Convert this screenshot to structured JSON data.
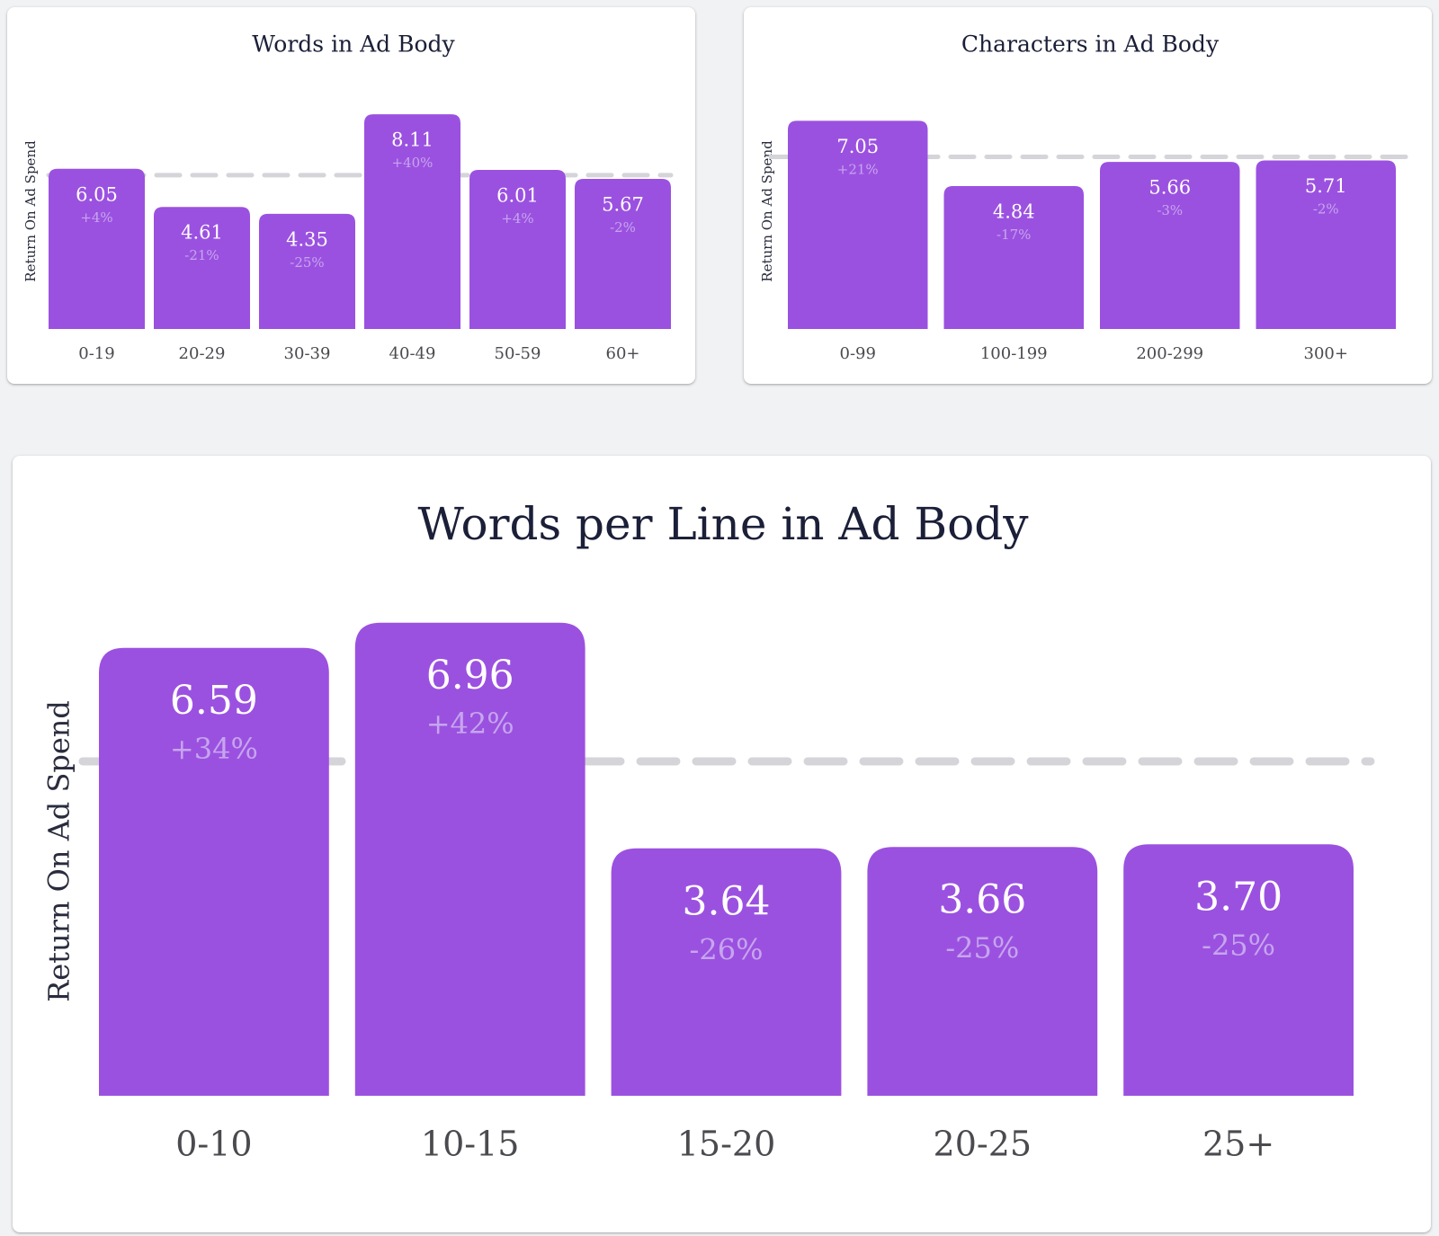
{
  "colors": {
    "bar": "#9b51e0",
    "reference_line": "#d4d4d9",
    "title": "#1b1f38",
    "value_label": "#ffffff",
    "percent_label": "#c6a6ee",
    "tick_label": "#4a4a4f",
    "card_background": "#ffffff",
    "page_background": "#f1f2f4"
  },
  "chart_data": [
    {
      "type": "bar",
      "title": "Words in Ad Body",
      "ylabel": "Return On Ad Spend",
      "xlabel": "",
      "categories": [
        "0-19",
        "20-29",
        "30-39",
        "40-49",
        "50-59",
        "60+"
      ],
      "values": [
        6.05,
        4.61,
        4.35,
        8.11,
        6.01,
        5.67
      ],
      "value_labels": [
        "6.05",
        "4.61",
        "4.35",
        "8.11",
        "6.01",
        "5.67"
      ],
      "percent_labels": [
        "+4%",
        "-21%",
        "-25%",
        "+40%",
        "+4%",
        "-2%"
      ],
      "reference_line": 5.81,
      "reference_style": "dashed",
      "grid": false,
      "legend": "none"
    },
    {
      "type": "bar",
      "title": "Characters in Ad Body",
      "ylabel": "Return On Ad Spend",
      "xlabel": "",
      "categories": [
        "0-99",
        "100-199",
        "200-299",
        "300+"
      ],
      "values": [
        7.05,
        4.84,
        5.66,
        5.71
      ],
      "value_labels": [
        "7.05",
        "4.84",
        "5.66",
        "5.71"
      ],
      "percent_labels": [
        "+21%",
        "-17%",
        "-3%",
        "-2%"
      ],
      "reference_line": 5.83,
      "reference_style": "dashed",
      "grid": false,
      "legend": "none"
    },
    {
      "type": "bar",
      "title": "Words per Line in Ad Body",
      "ylabel": "Return On Ad Spend",
      "xlabel": "",
      "categories": [
        "0-10",
        "10-15",
        "15-20",
        "20-25",
        "25+"
      ],
      "values": [
        6.59,
        6.96,
        3.64,
        3.66,
        3.7
      ],
      "value_labels": [
        "6.59",
        "6.96",
        "3.64",
        "3.66",
        "3.70"
      ],
      "percent_labels": [
        "+34%",
        "+42%",
        "-26%",
        "-25%",
        "-25%"
      ],
      "reference_line": 4.92,
      "reference_style": "dashed",
      "grid": false,
      "legend": "none"
    }
  ]
}
